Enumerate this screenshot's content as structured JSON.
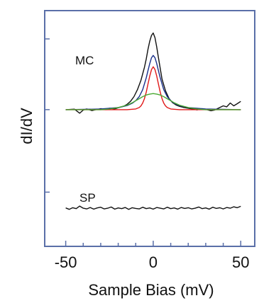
{
  "chart_data": {
    "type": "line",
    "xlabel": "Sample Bias (mV)",
    "ylabel": "dI/dV",
    "xlim": [
      -62,
      58
    ],
    "ylim": [
      0,
      100
    ],
    "x_ticks": [
      -50,
      -40,
      -30,
      -20,
      -10,
      0,
      10,
      20,
      30,
      40,
      50
    ],
    "x_tick_labels": [
      "-50",
      "",
      "",
      "",
      "",
      "0",
      "",
      "",
      "",
      "",
      "50"
    ],
    "y_ticks": [
      23,
      58,
      88
    ],
    "annotations": [
      "MC",
      "SP"
    ],
    "frame_color": "#5a6fa8",
    "series": [
      {
        "color": "#111111",
        "x": [
          -50,
          -45,
          -42,
          -40,
          -38,
          -35,
          -32,
          -30,
          -27,
          -25,
          -22,
          -20,
          -17,
          -15,
          -13,
          -11,
          -9,
          -7,
          -5,
          -4,
          -3,
          -2,
          -1,
          0,
          1,
          2,
          3,
          4,
          5,
          7,
          9,
          11,
          13,
          15,
          17,
          20,
          23,
          25,
          28,
          30,
          33,
          35,
          38,
          40,
          42,
          44,
          46,
          48,
          50
        ],
        "y": [
          58,
          58.2,
          56.5,
          57.8,
          58.3,
          57.6,
          58.1,
          58.4,
          58.0,
          58.6,
          58.3,
          58.8,
          59.4,
          60.2,
          61.5,
          63.5,
          66.5,
          70.5,
          76.0,
          79.5,
          83.5,
          87.0,
          89.5,
          90.5,
          88.5,
          84.5,
          80.0,
          75.5,
          71.0,
          66.0,
          62.8,
          61.0,
          60.0,
          59.4,
          59.0,
          58.6,
          58.2,
          57.9,
          58.4,
          58.1,
          57.5,
          57.8,
          58.9,
          59.6,
          59.2,
          60.8,
          59.6,
          60.5,
          61.5
        ]
      },
      {
        "color": "#1a2f8a",
        "x": [
          -50,
          -40,
          -30,
          -20,
          -15,
          -12,
          -10,
          -8,
          -6,
          -4,
          -3,
          -2,
          -1,
          0,
          1,
          2,
          3,
          4,
          6,
          8,
          10,
          12,
          15,
          20,
          30,
          40,
          50
        ],
        "y": [
          58,
          58.1,
          58.3,
          58.9,
          59.7,
          60.7,
          61.8,
          63.5,
          66.5,
          71.5,
          74.5,
          77.5,
          80.0,
          81.0,
          80.0,
          77.5,
          74.5,
          71.5,
          66.5,
          63.5,
          61.8,
          60.7,
          59.7,
          58.9,
          58.3,
          58.1,
          58
        ]
      },
      {
        "color": "#e01818",
        "x": [
          -50,
          -15,
          -10,
          -8,
          -7,
          -6,
          -5,
          -4,
          -3,
          -2,
          -1,
          0,
          1,
          2,
          3,
          4,
          5,
          6,
          7,
          8,
          10,
          15,
          50
        ],
        "y": [
          58,
          58,
          58.3,
          58.9,
          59.6,
          60.8,
          62.7,
          65.4,
          68.8,
          72.2,
          75.0,
          76.2,
          75.0,
          72.2,
          68.8,
          65.4,
          62.7,
          60.8,
          59.6,
          58.9,
          58.3,
          58,
          58
        ]
      },
      {
        "color": "#4aa832",
        "x": [
          -50,
          -30,
          -25,
          -20,
          -15,
          -12,
          -10,
          -8,
          -6,
          -4,
          -2,
          0,
          2,
          4,
          6,
          8,
          10,
          12,
          15,
          20,
          25,
          30,
          50
        ],
        "y": [
          58,
          58,
          58.3,
          58.9,
          59.9,
          60.9,
          61.8,
          62.6,
          63.5,
          64.2,
          64.6,
          64.8,
          64.6,
          64.2,
          63.5,
          62.6,
          61.8,
          60.9,
          59.9,
          58.9,
          58.3,
          58,
          58
        ]
      },
      {
        "color": "#111111",
        "x": [
          -50,
          -48,
          -46,
          -44,
          -42,
          -40,
          -38,
          -36,
          -34,
          -32,
          -30,
          -28,
          -26,
          -24,
          -22,
          -20,
          -18,
          -16,
          -14,
          -12,
          -10,
          -8,
          -6,
          -4,
          -2,
          0,
          2,
          4,
          6,
          8,
          10,
          12,
          14,
          16,
          18,
          20,
          22,
          24,
          26,
          28,
          30,
          32,
          34,
          36,
          38,
          40,
          42,
          44,
          46,
          48,
          50
        ],
        "y": [
          16.3,
          15.7,
          16.4,
          16.0,
          17.1,
          16.2,
          15.9,
          16.5,
          15.8,
          16.3,
          16.6,
          15.9,
          16.2,
          16.7,
          15.8,
          16.3,
          16.0,
          16.5,
          15.7,
          16.4,
          16.1,
          15.9,
          16.6,
          16.0,
          16.3,
          15.8,
          16.5,
          16.2,
          15.9,
          16.6,
          16.0,
          16.3,
          15.8,
          16.5,
          16.1,
          16.4,
          15.9,
          16.2,
          16.7,
          16.0,
          16.3,
          15.8,
          16.6,
          16.1,
          16.4,
          15.9,
          16.5,
          16.2,
          16.8,
          16.4,
          17.0
        ]
      }
    ]
  }
}
